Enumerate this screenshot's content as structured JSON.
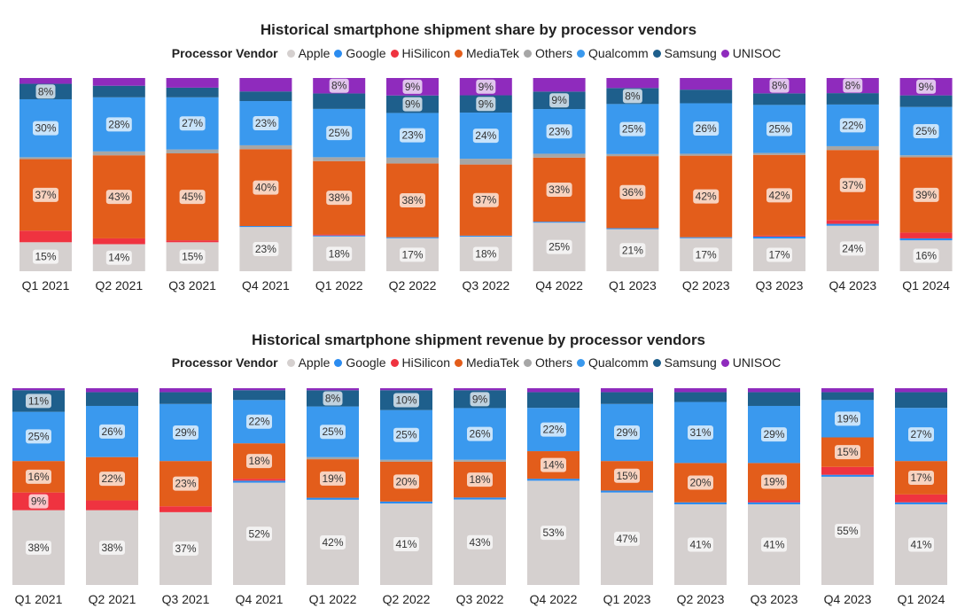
{
  "legend_title": "Processor Vendor",
  "vendors": [
    {
      "name": "Apple",
      "color": "#d5d0cf"
    },
    {
      "name": "Google",
      "color": "#2b8cf0"
    },
    {
      "name": "HiSilicon",
      "color": "#ef3340"
    },
    {
      "name": "MediaTek",
      "color": "#e35d1b"
    },
    {
      "name": "Others",
      "color": "#a6a6a6"
    },
    {
      "name": "Qualcomm",
      "color": "#3a99ee"
    },
    {
      "name": "Samsung",
      "color": "#1e5f8c"
    },
    {
      "name": "UNISOC",
      "color": "#8f2bbd"
    }
  ],
  "chart_data": [
    {
      "type": "bar",
      "stacked": true,
      "percent": true,
      "title": "Historical smartphone shipment share by processor vendors",
      "categories": [
        "Q1 2021",
        "Q2 2021",
        "Q3 2021",
        "Q4 2021",
        "Q1 2022",
        "Q2 2022",
        "Q3 2022",
        "Q4 2022",
        "Q1 2023",
        "Q2 2023",
        "Q3 2023",
        "Q4 2023",
        "Q1 2024"
      ],
      "series": [
        {
          "name": "Apple",
          "values": [
            15,
            14,
            15,
            23,
            18,
            17,
            18,
            25,
            21,
            17,
            17,
            24,
            16
          ],
          "labels": [
            true,
            true,
            true,
            true,
            true,
            true,
            true,
            true,
            true,
            true,
            true,
            true,
            true
          ]
        },
        {
          "name": "Google",
          "values": [
            0,
            0,
            0,
            0.5,
            0.5,
            0.5,
            0.5,
            0.5,
            0.5,
            0.5,
            1,
            1,
            1
          ],
          "labels": [
            false,
            false,
            false,
            false,
            false,
            false,
            false,
            false,
            false,
            false,
            false,
            false,
            false
          ]
        },
        {
          "name": "HiSilicon",
          "values": [
            6,
            3,
            1,
            0,
            0.5,
            0,
            0,
            0,
            0,
            0,
            0.5,
            2,
            3
          ],
          "labels": [
            false,
            false,
            false,
            false,
            false,
            false,
            false,
            false,
            false,
            false,
            false,
            false,
            false
          ]
        },
        {
          "name": "MediaTek",
          "values": [
            37,
            43,
            45,
            40,
            38,
            38,
            37,
            33,
            36,
            42,
            42,
            37,
            39
          ],
          "labels": [
            true,
            true,
            true,
            true,
            true,
            true,
            true,
            true,
            true,
            true,
            true,
            true,
            true
          ]
        },
        {
          "name": "Others",
          "values": [
            1,
            2,
            2,
            2,
            2,
            3,
            3,
            2,
            1,
            1,
            1,
            2,
            1
          ],
          "labels": [
            false,
            false,
            false,
            false,
            false,
            false,
            false,
            false,
            false,
            false,
            false,
            false,
            false
          ]
        },
        {
          "name": "Qualcomm",
          "values": [
            30,
            28,
            27,
            23,
            25,
            23,
            24,
            23,
            25,
            26,
            25,
            22,
            25
          ],
          "labels": [
            true,
            true,
            true,
            true,
            true,
            true,
            true,
            true,
            true,
            true,
            true,
            true,
            true
          ]
        },
        {
          "name": "Samsung",
          "values": [
            8,
            6,
            5,
            5,
            8,
            9,
            9,
            9,
            8,
            7,
            6,
            6,
            6
          ],
          "labels": [
            true,
            false,
            false,
            false,
            false,
            true,
            true,
            true,
            true,
            false,
            false,
            false,
            false
          ]
        },
        {
          "name": "UNISOC",
          "values": [
            3,
            4,
            5,
            7,
            8,
            9,
            9,
            7,
            5,
            6,
            8,
            8,
            9
          ],
          "labels": [
            false,
            false,
            false,
            false,
            true,
            true,
            true,
            false,
            false,
            false,
            true,
            true,
            true
          ]
        }
      ]
    },
    {
      "type": "bar",
      "stacked": true,
      "percent": true,
      "title": "Historical smartphone shipment revenue by processor vendors",
      "categories": [
        "Q1 2021",
        "Q2 2021",
        "Q3 2021",
        "Q4 2021",
        "Q1 2022",
        "Q2 2022",
        "Q3 2022",
        "Q4 2022",
        "Q1 2023",
        "Q2 2023",
        "Q3 2023",
        "Q4 2023",
        "Q1 2024"
      ],
      "series": [
        {
          "name": "Apple",
          "values": [
            38,
            38,
            37,
            52,
            42,
            41,
            43,
            53,
            47,
            41,
            41,
            55,
            41
          ],
          "labels": [
            true,
            true,
            true,
            true,
            true,
            true,
            true,
            true,
            true,
            true,
            true,
            true,
            true
          ]
        },
        {
          "name": "Google",
          "values": [
            0,
            0,
            0,
            1,
            1,
            1,
            1,
            1,
            1,
            1,
            1,
            1,
            1
          ],
          "labels": [
            false,
            false,
            false,
            false,
            false,
            false,
            false,
            false,
            false,
            false,
            false,
            false,
            false
          ]
        },
        {
          "name": "HiSilicon",
          "values": [
            9,
            5,
            3,
            1,
            0,
            0,
            0,
            0,
            0,
            0,
            1,
            4,
            4
          ],
          "labels": [
            true,
            false,
            false,
            false,
            false,
            false,
            false,
            false,
            false,
            false,
            false,
            false,
            false
          ]
        },
        {
          "name": "MediaTek",
          "values": [
            16,
            22,
            23,
            18,
            19,
            20,
            18,
            14,
            15,
            20,
            19,
            15,
            17
          ],
          "labels": [
            true,
            true,
            true,
            true,
            true,
            true,
            true,
            true,
            true,
            true,
            true,
            true,
            true
          ]
        },
        {
          "name": "Others",
          "values": [
            0,
            0,
            0,
            0,
            1,
            1,
            1,
            0,
            0,
            0,
            0,
            0,
            0
          ],
          "labels": [
            false,
            false,
            false,
            false,
            false,
            false,
            false,
            false,
            false,
            false,
            false,
            false,
            false
          ]
        },
        {
          "name": "Qualcomm",
          "values": [
            25,
            26,
            29,
            22,
            25,
            25,
            26,
            22,
            29,
            31,
            29,
            19,
            27
          ],
          "labels": [
            true,
            true,
            true,
            true,
            true,
            true,
            true,
            true,
            true,
            true,
            true,
            true,
            true
          ]
        },
        {
          "name": "Samsung",
          "values": [
            11,
            7,
            6,
            5,
            8,
            10,
            9,
            8,
            6,
            5,
            7,
            4,
            8
          ],
          "labels": [
            true,
            false,
            false,
            false,
            true,
            true,
            true,
            false,
            false,
            false,
            false,
            false,
            false
          ]
        },
        {
          "name": "UNISOC",
          "values": [
            1,
            2,
            2,
            1,
            1,
            1,
            1,
            2,
            2,
            2,
            2,
            2,
            2
          ],
          "labels": [
            false,
            false,
            false,
            false,
            false,
            false,
            false,
            false,
            false,
            false,
            false,
            false,
            false
          ]
        }
      ]
    }
  ]
}
